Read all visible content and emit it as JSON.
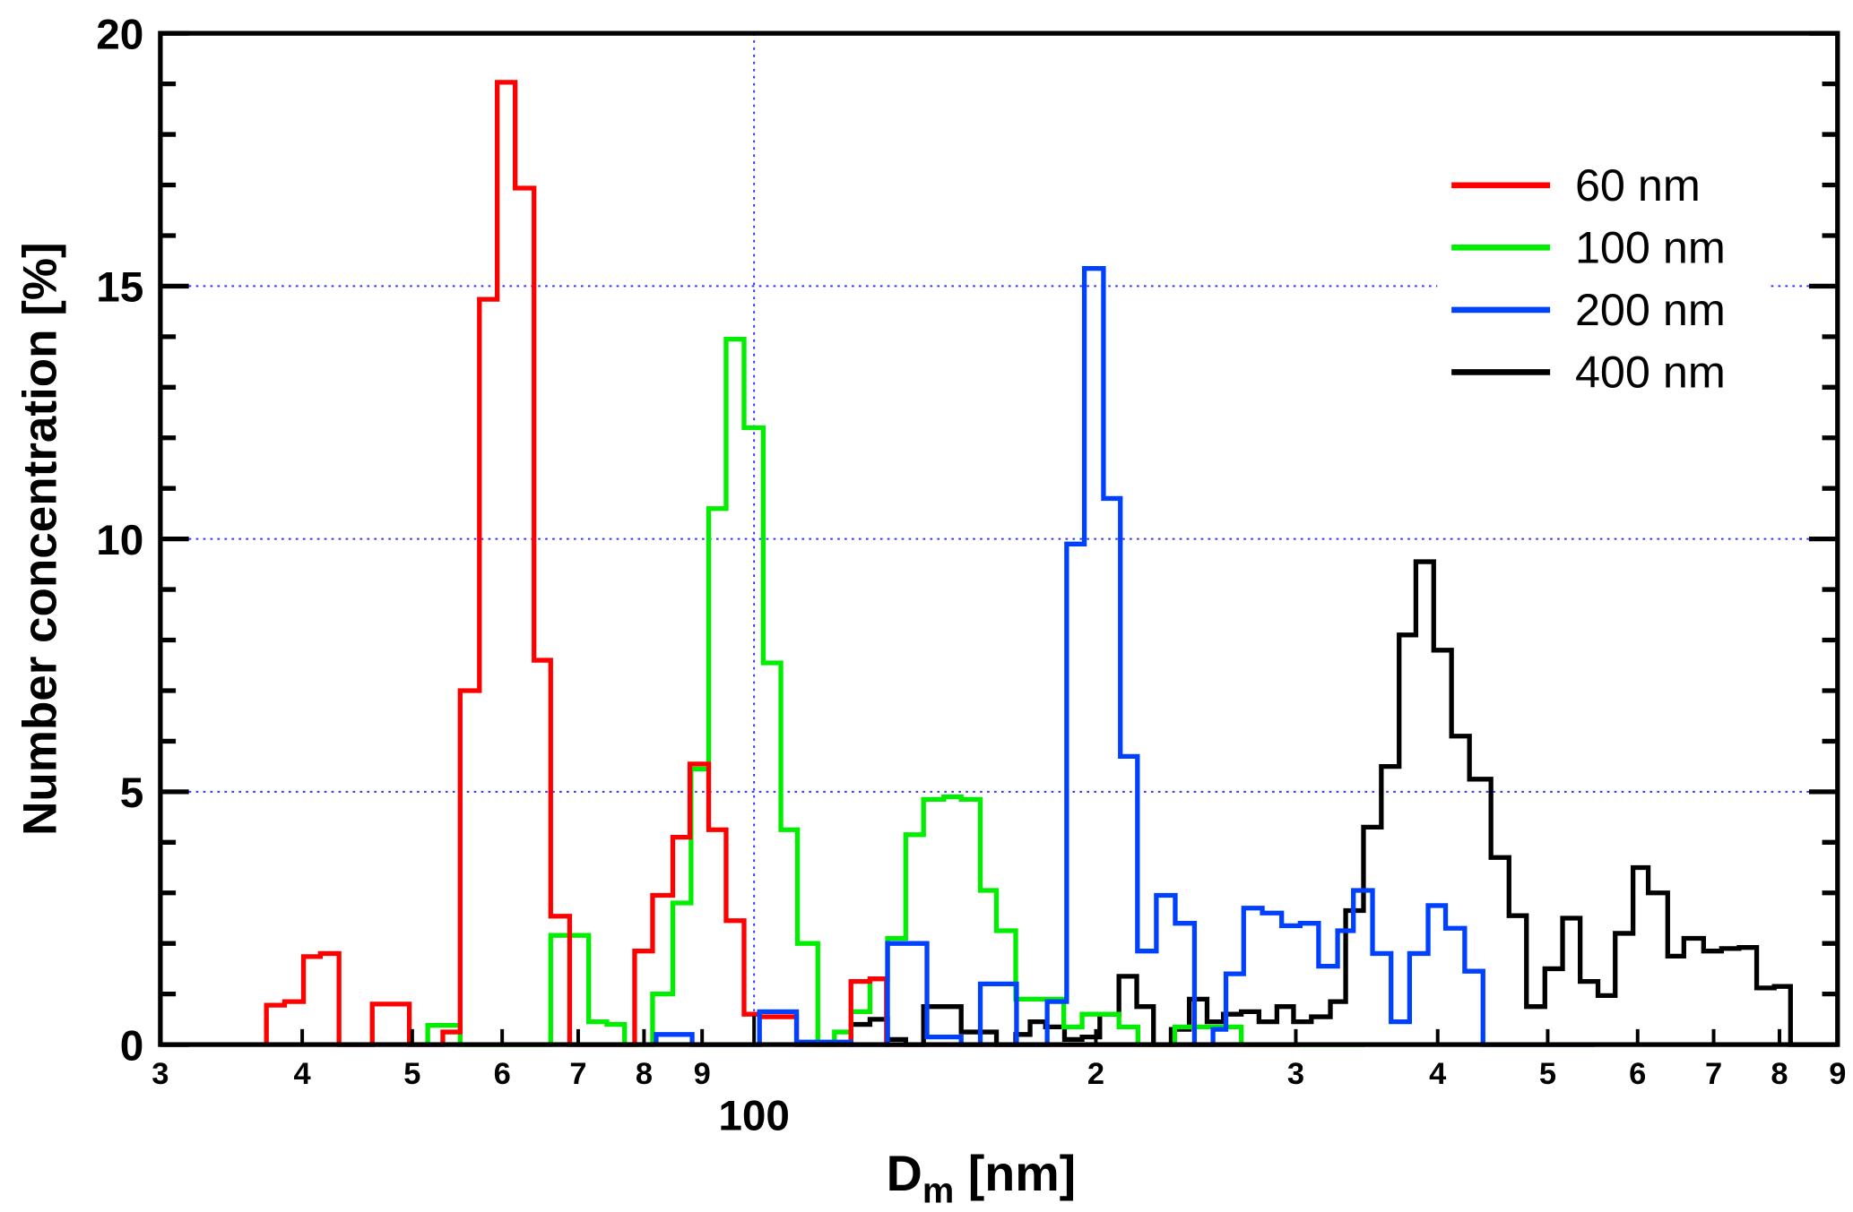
{
  "chart_data": {
    "type": "line",
    "style": "step histogram",
    "title": "",
    "xlabel": {
      "base": "D",
      "sub": "m",
      "unit": "[nm]"
    },
    "ylabel": "Number concentration [%]",
    "xscale": "log",
    "xlim": [
      30,
      900
    ],
    "ylim": [
      0,
      20
    ],
    "grid": {
      "y_values": [
        5,
        10,
        15
      ],
      "x_values": [
        100
      ],
      "style": "dotted",
      "color": "#3333ff"
    },
    "legend_position": "top-right",
    "x_tick_labels": [
      {
        "value": 30,
        "label": "3"
      },
      {
        "value": 40,
        "label": "4"
      },
      {
        "value": 50,
        "label": "5"
      },
      {
        "value": 60,
        "label": "6"
      },
      {
        "value": 70,
        "label": "7"
      },
      {
        "value": 80,
        "label": "8"
      },
      {
        "value": 90,
        "label": "9"
      },
      {
        "value": 200,
        "label": "2"
      },
      {
        "value": 300,
        "label": "3"
      },
      {
        "value": 400,
        "label": "4"
      },
      {
        "value": 500,
        "label": "5"
      },
      {
        "value": 600,
        "label": "6"
      },
      {
        "value": 700,
        "label": "7"
      },
      {
        "value": 800,
        "label": "8"
      },
      {
        "value": 900,
        "label": "9"
      }
    ],
    "x_major_label": {
      "value": 100,
      "label": "100"
    },
    "y_ticks": [
      0,
      5,
      10,
      15,
      20
    ],
    "y_tick_labels": [
      "0",
      "5",
      "10",
      "15",
      "20"
    ],
    "series": [
      {
        "name": "60 nm",
        "color": "#ff0000",
        "end_nm": 302,
        "steps": [
          [
            37.2,
            0.78
          ],
          [
            38.6,
            0.85
          ],
          [
            40.1,
            1.74
          ],
          [
            41.5,
            1.8
          ],
          [
            43.1,
            0
          ],
          [
            46.1,
            0.8
          ],
          [
            49.7,
            0
          ],
          [
            53.2,
            0.25
          ],
          [
            55.1,
            7.0
          ],
          [
            57.3,
            14.74
          ],
          [
            59.4,
            19.03
          ],
          [
            61.6,
            16.94
          ],
          [
            64.0,
            7.6
          ],
          [
            66.2,
            2.54
          ],
          [
            68.8,
            0
          ],
          [
            78.5,
            1.85
          ],
          [
            81.4,
            2.95
          ],
          [
            84.8,
            4.1
          ],
          [
            87.8,
            5.55
          ],
          [
            91.2,
            4.25
          ],
          [
            94.5,
            2.45
          ],
          [
            98.0,
            0.6
          ],
          [
            101.1,
            0.55
          ],
          [
            109.0,
            0
          ],
          [
            121.7,
            1.25
          ],
          [
            126.5,
            1.3
          ],
          [
            130.8,
            0
          ]
        ]
      },
      {
        "name": "100 nm",
        "color": "#00ee00",
        "end_nm": 345,
        "steps": [
          [
            51.6,
            0.38
          ],
          [
            55.1,
            0
          ],
          [
            66.2,
            2.16
          ],
          [
            71.5,
            0.45
          ],
          [
            74.2,
            0.4
          ],
          [
            76.9,
            0
          ],
          [
            81.4,
            1.0
          ],
          [
            84.8,
            2.8
          ],
          [
            88.0,
            5.45
          ],
          [
            91.2,
            10.6
          ],
          [
            94.5,
            13.95
          ],
          [
            98.0,
            12.2
          ],
          [
            101.9,
            7.55
          ],
          [
            105.6,
            4.25
          ],
          [
            109.2,
            2.0
          ],
          [
            113.8,
            0
          ],
          [
            117.7,
            0.25
          ],
          [
            121.7,
            0.65
          ],
          [
            126.5,
            1.3
          ],
          [
            131.1,
            2.1
          ],
          [
            136.0,
            4.15
          ],
          [
            141.0,
            4.85
          ],
          [
            146.9,
            4.9
          ],
          [
            152.2,
            4.85
          ],
          [
            158.2,
            3.05
          ],
          [
            163.5,
            2.25
          ],
          [
            170.0,
            0.9
          ],
          [
            187.4,
            0.35
          ],
          [
            194.5,
            0.6
          ],
          [
            209.6,
            0.35
          ],
          [
            217.8,
            0
          ],
          [
            234.7,
            0.35
          ],
          [
            268.6,
            0
          ]
        ]
      },
      {
        "name": "200 nm",
        "color": "#0040ff",
        "end_nm": 550,
        "steps": [
          [
            82.0,
            0.2
          ],
          [
            88.2,
            0
          ],
          [
            101.1,
            0.65
          ],
          [
            109.0,
            0.05
          ],
          [
            121.7,
            0
          ],
          [
            131.1,
            2.0
          ],
          [
            142.0,
            0.15
          ],
          [
            152.2,
            0
          ],
          [
            158.2,
            1.2
          ],
          [
            170.3,
            0
          ],
          [
            181.2,
            0.85
          ],
          [
            188.5,
            9.9
          ],
          [
            195.4,
            15.35
          ],
          [
            203.1,
            10.8
          ],
          [
            210.2,
            5.7
          ],
          [
            217.6,
            1.85
          ],
          [
            226.1,
            2.95
          ],
          [
            234.9,
            2.4
          ],
          [
            244.3,
            0
          ],
          [
            253.6,
            0.3
          ],
          [
            260.4,
            1.4
          ],
          [
            269.9,
            2.7
          ],
          [
            280.3,
            2.6
          ],
          [
            291.5,
            2.35
          ],
          [
            302.7,
            2.4
          ],
          [
            314.2,
            1.55
          ],
          [
            326.5,
            2.25
          ],
          [
            337.2,
            3.05
          ],
          [
            350.5,
            1.8
          ],
          [
            363.9,
            0.45
          ],
          [
            377.9,
            1.8
          ],
          [
            392.3,
            2.75
          ],
          [
            406.5,
            2.3
          ],
          [
            422.5,
            1.45
          ],
          [
            438.5,
            0
          ]
        ]
      },
      {
        "name": "400 nm",
        "color": "#000000",
        "end_nm": 850.5,
        "steps": [
          [
            121.7,
            0.4
          ],
          [
            126.5,
            0.5
          ],
          [
            131.1,
            0.1
          ],
          [
            136.0,
            0
          ],
          [
            141.0,
            0.75
          ],
          [
            152.2,
            0.25
          ],
          [
            163.5,
            0
          ],
          [
            170.0,
            0.2
          ],
          [
            175.0,
            0.45
          ],
          [
            180.6,
            0.35
          ],
          [
            187.7,
            0.1
          ],
          [
            194.5,
            0.15
          ],
          [
            201.6,
            0.6
          ],
          [
            209.6,
            1.35
          ],
          [
            217.3,
            0.75
          ],
          [
            224.8,
            0
          ],
          [
            233.0,
            0.3
          ],
          [
            241.7,
            0.9
          ],
          [
            250.6,
            0.45
          ],
          [
            259.0,
            0.6
          ],
          [
            268.6,
            0.65
          ],
          [
            278.4,
            0.45
          ],
          [
            288.7,
            0.75
          ],
          [
            298.6,
            0.45
          ],
          [
            309.6,
            0.55
          ],
          [
            321.8,
            0.85
          ],
          [
            331.9,
            2.65
          ],
          [
            344.1,
            4.3
          ],
          [
            356.8,
            5.5
          ],
          [
            369.9,
            8.1
          ],
          [
            382.7,
            9.55
          ],
          [
            396.8,
            7.8
          ],
          [
            411.4,
            6.1
          ],
          [
            426.6,
            5.25
          ],
          [
            445.6,
            3.7
          ],
          [
            462.3,
            2.55
          ],
          [
            478.9,
            0.75
          ],
          [
            497.1,
            1.5
          ],
          [
            515.3,
            2.5
          ],
          [
            534.0,
            1.25
          ],
          [
            553.7,
            0.97
          ],
          [
            573.4,
            2.2
          ],
          [
            594.4,
            3.5
          ],
          [
            613.1,
            3.0
          ],
          [
            637.8,
            1.75
          ],
          [
            659.0,
            2.1
          ],
          [
            685.9,
            1.85
          ],
          [
            711.2,
            1.9
          ],
          [
            737.0,
            1.92
          ],
          [
            763.8,
            1.12
          ],
          [
            791.5,
            1.15
          ],
          [
            818.2,
            0.58
          ]
        ]
      }
    ]
  }
}
